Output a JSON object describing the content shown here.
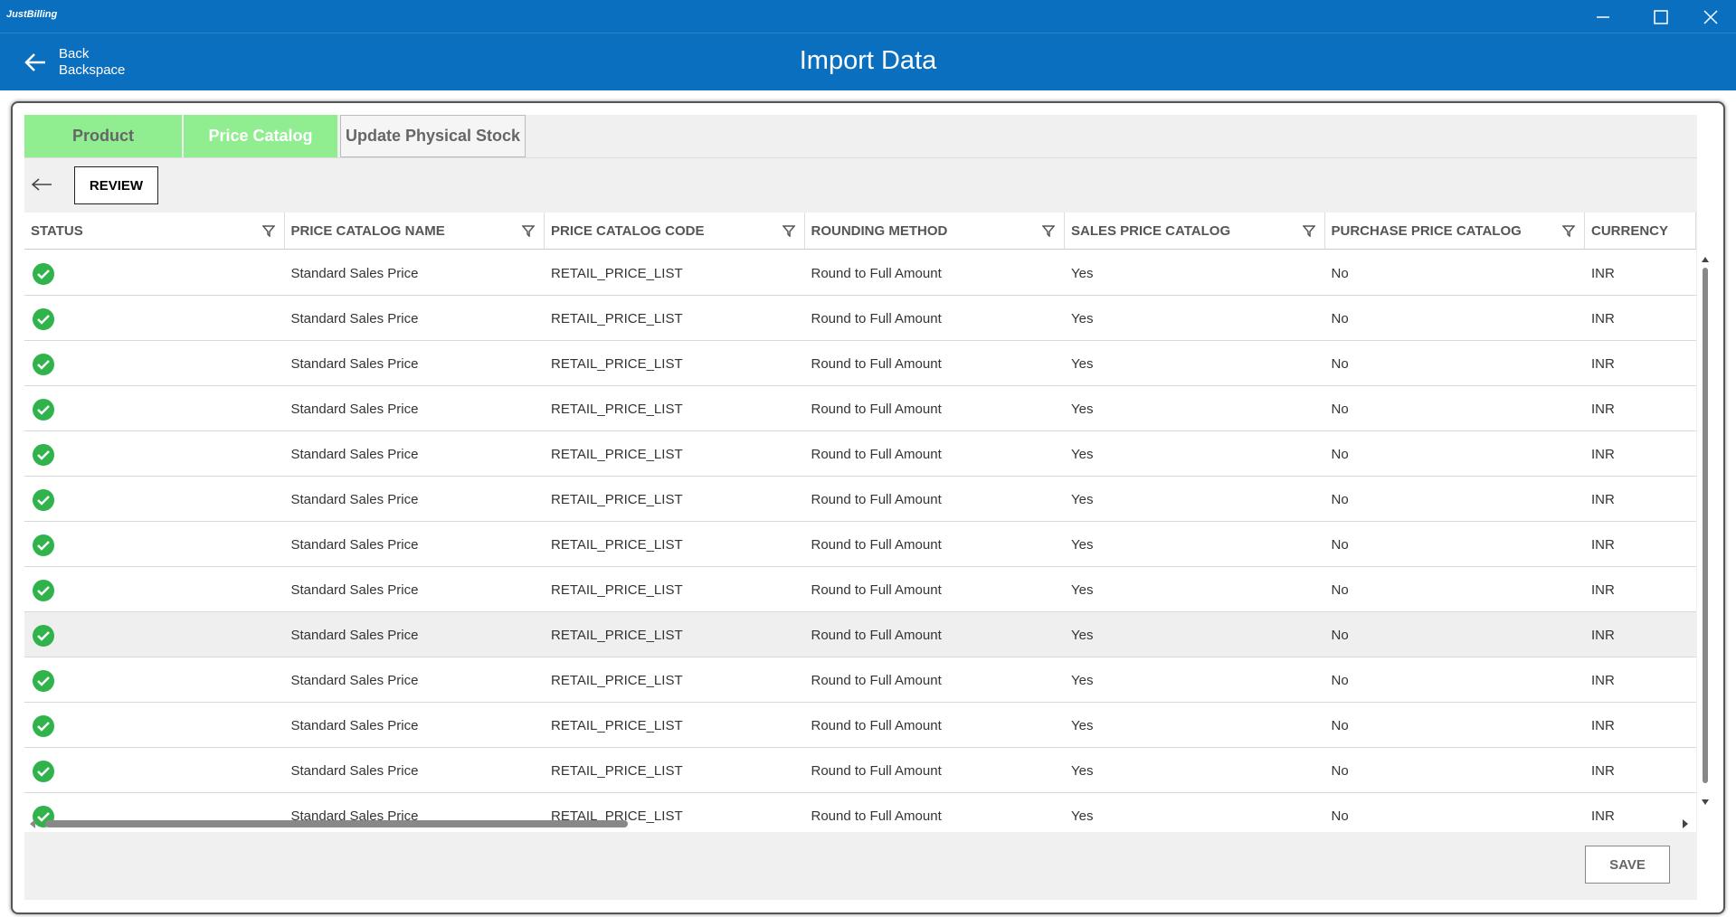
{
  "app": {
    "name": "JustBilling"
  },
  "header": {
    "back": "Back",
    "shortcut": "Backspace",
    "title": "Import Data"
  },
  "tabs": [
    "Product",
    "Price Catalog",
    "Update Physical Stock"
  ],
  "toolbar": {
    "button": "REVIEW"
  },
  "table": {
    "columns": [
      "STATUS",
      "PRICE CATALOG NAME",
      "PRICE CATALOG CODE",
      "ROUNDING METHOD",
      "SALES PRICE CATALOG",
      "PURCHASE PRICE CATALOG",
      "CURRENCY"
    ],
    "rows": [
      [
        "Standard Sales Price",
        "RETAIL_PRICE_LIST",
        "Round to Full Amount",
        "Yes",
        "No",
        "INR"
      ],
      [
        "Standard Sales Price",
        "RETAIL_PRICE_LIST",
        "Round to Full Amount",
        "Yes",
        "No",
        "INR"
      ],
      [
        "Standard Sales Price",
        "RETAIL_PRICE_LIST",
        "Round to Full Amount",
        "Yes",
        "No",
        "INR"
      ],
      [
        "Standard Sales Price",
        "RETAIL_PRICE_LIST",
        "Round to Full Amount",
        "Yes",
        "No",
        "INR"
      ],
      [
        "Standard Sales Price",
        "RETAIL_PRICE_LIST",
        "Round to Full Amount",
        "Yes",
        "No",
        "INR"
      ],
      [
        "Standard Sales Price",
        "RETAIL_PRICE_LIST",
        "Round to Full Amount",
        "Yes",
        "No",
        "INR"
      ],
      [
        "Standard Sales Price",
        "RETAIL_PRICE_LIST",
        "Round to Full Amount",
        "Yes",
        "No",
        "INR"
      ],
      [
        "Standard Sales Price",
        "RETAIL_PRICE_LIST",
        "Round to Full Amount",
        "Yes",
        "No",
        "INR"
      ],
      [
        "Standard Sales Price",
        "RETAIL_PRICE_LIST",
        "Round to Full Amount",
        "Yes",
        "No",
        "INR"
      ],
      [
        "Standard Sales Price",
        "RETAIL_PRICE_LIST",
        "Round to Full Amount",
        "Yes",
        "No",
        "INR"
      ],
      [
        "Standard Sales Price",
        "RETAIL_PRICE_LIST",
        "Round to Full Amount",
        "Yes",
        "No",
        "INR"
      ],
      [
        "Standard Sales Price",
        "RETAIL_PRICE_LIST",
        "Round to Full Amount",
        "Yes",
        "No",
        "INR"
      ],
      [
        "Standard Sales Price",
        "RETAIL_PRICE_LIST",
        "Round to Full Amount",
        "Yes",
        "No",
        "INR"
      ]
    ]
  },
  "footer": {
    "button": "SAVE"
  }
}
